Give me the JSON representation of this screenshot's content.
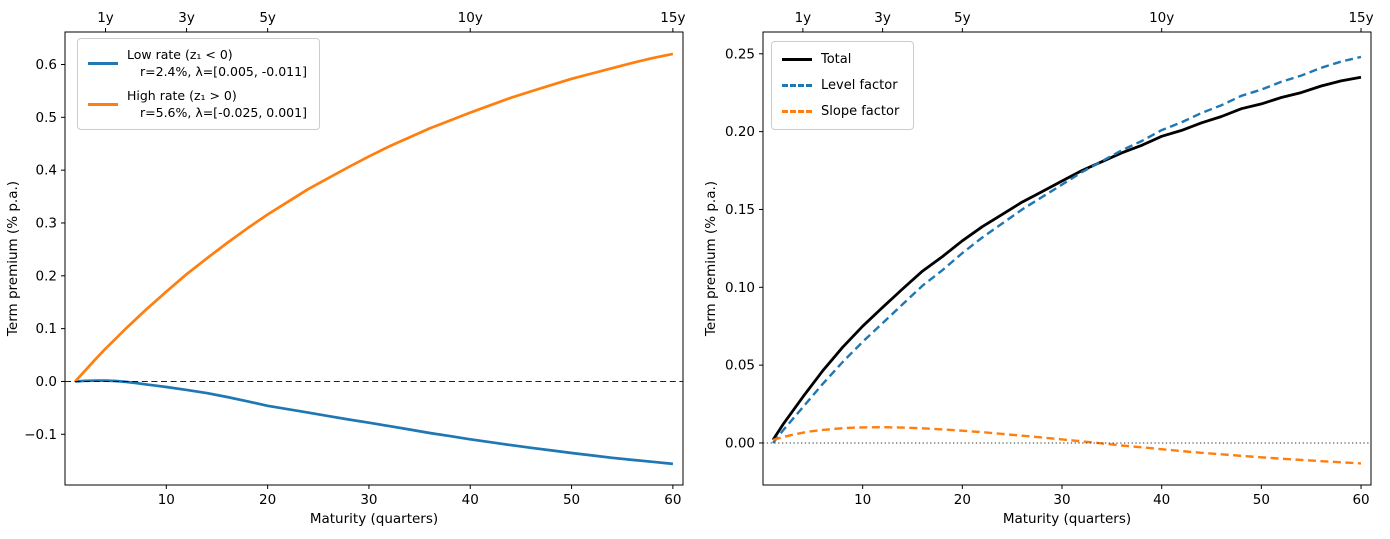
{
  "figure": {
    "background": "#ffffff"
  },
  "colors": {
    "blue": "#1f77b4",
    "orange": "#ff7f0e",
    "black": "#000000",
    "axis": "#000000",
    "legend_border": "#cccccc"
  },
  "chart_data": [
    {
      "type": "line",
      "title": "",
      "xlabel": "Maturity (quarters)",
      "ylabel": "Term premium (% p.a.)",
      "xlim": [
        0,
        61
      ],
      "ylim": [
        -0.196,
        0.6615
      ],
      "grid": false,
      "x_ticks": [
        {
          "v": 10,
          "label": "10"
        },
        {
          "v": 20,
          "label": "20"
        },
        {
          "v": 30,
          "label": "30"
        },
        {
          "v": 40,
          "label": "40"
        },
        {
          "v": 50,
          "label": "50"
        },
        {
          "v": 60,
          "label": "60"
        }
      ],
      "y_ticks": [
        {
          "v": -0.1,
          "label": "−0.1"
        },
        {
          "v": 0.0,
          "label": "0.0"
        },
        {
          "v": 0.1,
          "label": "0.1"
        },
        {
          "v": 0.2,
          "label": "0.2"
        },
        {
          "v": 0.3,
          "label": "0.3"
        },
        {
          "v": 0.4,
          "label": "0.4"
        },
        {
          "v": 0.5,
          "label": "0.5"
        },
        {
          "v": 0.6,
          "label": "0.6"
        }
      ],
      "top_ticks": [
        {
          "v": 4,
          "label": "1y"
        },
        {
          "v": 12,
          "label": "3y"
        },
        {
          "v": 20,
          "label": "5y"
        },
        {
          "v": 40,
          "label": "10y"
        },
        {
          "v": 60,
          "label": "15y"
        }
      ],
      "zero_line": {
        "value": 0.0,
        "dash": "dashed",
        "color": "#000000"
      },
      "legend": {
        "position": "upper left",
        "entries": [
          {
            "label": "Low rate (z₁ < 0)",
            "sublabel": "r=2.4%, λ=[0.005, -0.011]",
            "color": "#1f77b4",
            "dash": "solid"
          },
          {
            "label": "High rate (z₁ > 0)",
            "sublabel": "r=5.6%, λ=[-0.025, 0.001]",
            "color": "#ff7f0e",
            "dash": "solid"
          }
        ]
      },
      "series": [
        {
          "id": "low-rate",
          "name": "Low rate (z₁ < 0)",
          "color": "#1f77b4",
          "dash": "solid",
          "width": 2.7,
          "points": [
            [
              1,
              0
            ],
            [
              2,
              0.0012
            ],
            [
              3,
              0.0017
            ],
            [
              4,
              0.0016
            ],
            [
              5,
              0.0008
            ],
            [
              6,
              -0.0008
            ],
            [
              7,
              -0.003
            ],
            [
              8,
              -0.0055
            ],
            [
              9,
              -0.008
            ],
            [
              10,
              -0.0105
            ],
            [
              12,
              -0.016
            ],
            [
              14,
              -0.022
            ],
            [
              16,
              -0.0295
            ],
            [
              18,
              -0.0375
            ],
            [
              20,
              -0.046
            ],
            [
              22,
              -0.0525
            ],
            [
              24,
              -0.059
            ],
            [
              26,
              -0.0655
            ],
            [
              28,
              -0.072
            ],
            [
              30,
              -0.078
            ],
            [
              32,
              -0.0845
            ],
            [
              34,
              -0.091
            ],
            [
              36,
              -0.0975
            ],
            [
              38,
              -0.1035
            ],
            [
              40,
              -0.1095
            ],
            [
              42,
              -0.115
            ],
            [
              44,
              -0.1205
            ],
            [
              46,
              -0.1255
            ],
            [
              48,
              -0.1305
            ],
            [
              50,
              -0.1355
            ],
            [
              52,
              -0.14
            ],
            [
              54,
              -0.1445
            ],
            [
              56,
              -0.1485
            ],
            [
              58,
              -0.152
            ],
            [
              60,
              -0.156
            ]
          ]
        },
        {
          "id": "high-rate",
          "name": "High rate (z₁ > 0)",
          "color": "#ff7f0e",
          "dash": "solid",
          "width": 2.7,
          "points": [
            [
              1,
              0
            ],
            [
              2,
              0.021
            ],
            [
              3,
              0.042
            ],
            [
              4,
              0.062
            ],
            [
              5,
              0.081
            ],
            [
              6,
              0.1
            ],
            [
              7,
              0.118
            ],
            [
              8,
              0.136
            ],
            [
              9,
              0.153
            ],
            [
              10,
              0.17
            ],
            [
              12,
              0.203
            ],
            [
              14,
              0.233
            ],
            [
              16,
              0.262
            ],
            [
              18,
              0.29
            ],
            [
              20,
              0.316
            ],
            [
              22,
              0.34
            ],
            [
              24,
              0.364
            ],
            [
              26,
              0.385
            ],
            [
              28,
              0.406
            ],
            [
              30,
              0.426
            ],
            [
              32,
              0.445
            ],
            [
              34,
              0.462
            ],
            [
              36,
              0.479
            ],
            [
              38,
              0.494
            ],
            [
              40,
              0.509
            ],
            [
              42,
              0.523
            ],
            [
              44,
              0.537
            ],
            [
              46,
              0.549
            ],
            [
              48,
              0.561
            ],
            [
              50,
              0.573
            ],
            [
              52,
              0.583
            ],
            [
              54,
              0.593
            ],
            [
              56,
              0.603
            ],
            [
              58,
              0.612
            ],
            [
              60,
              0.62
            ]
          ]
        }
      ]
    },
    {
      "type": "line",
      "title": "",
      "xlabel": "Maturity (quarters)",
      "ylabel": "Term premium (% p.a.)",
      "xlim": [
        0,
        61
      ],
      "ylim": [
        -0.027,
        0.264
      ],
      "grid": false,
      "x_ticks": [
        {
          "v": 10,
          "label": "10"
        },
        {
          "v": 20,
          "label": "20"
        },
        {
          "v": 30,
          "label": "30"
        },
        {
          "v": 40,
          "label": "40"
        },
        {
          "v": 50,
          "label": "50"
        },
        {
          "v": 60,
          "label": "60"
        }
      ],
      "y_ticks": [
        {
          "v": 0.0,
          "label": "0.00"
        },
        {
          "v": 0.05,
          "label": "0.05"
        },
        {
          "v": 0.1,
          "label": "0.10"
        },
        {
          "v": 0.15,
          "label": "0.15"
        },
        {
          "v": 0.2,
          "label": "0.20"
        },
        {
          "v": 0.25,
          "label": "0.25"
        }
      ],
      "top_ticks": [
        {
          "v": 4,
          "label": "1y"
        },
        {
          "v": 12,
          "label": "3y"
        },
        {
          "v": 20,
          "label": "5y"
        },
        {
          "v": 40,
          "label": "10y"
        },
        {
          "v": 60,
          "label": "15y"
        }
      ],
      "zero_line": {
        "value": 0.0,
        "dash": "dotted",
        "color": "#333333"
      },
      "legend": {
        "position": "upper left",
        "entries": [
          {
            "label": "Total",
            "sublabel": "",
            "color": "#000000",
            "dash": "solid"
          },
          {
            "label": "Level factor",
            "sublabel": "",
            "color": "#1f77b4",
            "dash": "dashed"
          },
          {
            "label": "Slope factor",
            "sublabel": "",
            "color": "#ff7f0e",
            "dash": "dashed"
          }
        ]
      },
      "series": [
        {
          "id": "total",
          "name": "Total",
          "color": "#000000",
          "dash": "solid",
          "width": 2.8,
          "points": [
            [
              1,
              0.002
            ],
            [
              2,
              0.0118
            ],
            [
              4,
              0.0296
            ],
            [
              6,
              0.0464
            ],
            [
              8,
              0.0615
            ],
            [
              10,
              0.075
            ],
            [
              12,
              0.0871
            ],
            [
              14,
              0.0989
            ],
            [
              16,
              0.1104
            ],
            [
              18,
              0.1197
            ],
            [
              20,
              0.1299
            ],
            [
              22,
              0.1389
            ],
            [
              24,
              0.1468
            ],
            [
              26,
              0.1547
            ],
            [
              28,
              0.1615
            ],
            [
              30,
              0.1683
            ],
            [
              32,
              0.175
            ],
            [
              34,
              0.1807
            ],
            [
              36,
              0.1864
            ],
            [
              38,
              0.1912
            ],
            [
              40,
              0.197
            ],
            [
              42,
              0.2008
            ],
            [
              44,
              0.2057
            ],
            [
              46,
              0.2097
            ],
            [
              48,
              0.2147
            ],
            [
              50,
              0.2178
            ],
            [
              52,
              0.2219
            ],
            [
              54,
              0.2251
            ],
            [
              56,
              0.2293
            ],
            [
              58,
              0.2326
            ],
            [
              60,
              0.2349
            ]
          ]
        },
        {
          "id": "level-factor",
          "name": "Level factor",
          "color": "#1f77b4",
          "dash": "dashed",
          "width": 2.4,
          "points": [
            [
              1,
              0
            ],
            [
              2,
              0.008
            ],
            [
              4,
              0.023
            ],
            [
              6,
              0.038
            ],
            [
              8,
              0.052
            ],
            [
              10,
              0.065
            ],
            [
              12,
              0.077
            ],
            [
              14,
              0.089
            ],
            [
              16,
              0.101
            ],
            [
              18,
              0.111
            ],
            [
              20,
              0.122
            ],
            [
              22,
              0.132
            ],
            [
              24,
              0.141
            ],
            [
              26,
              0.15
            ],
            [
              28,
              0.158
            ],
            [
              30,
              0.166
            ],
            [
              32,
              0.174
            ],
            [
              34,
              0.181
            ],
            [
              36,
              0.188
            ],
            [
              38,
              0.194
            ],
            [
              40,
              0.201
            ],
            [
              42,
              0.206
            ],
            [
              44,
              0.212
            ],
            [
              46,
              0.217
            ],
            [
              48,
              0.223
            ],
            [
              50,
              0.227
            ],
            [
              52,
              0.232
            ],
            [
              54,
              0.236
            ],
            [
              56,
              0.241
            ],
            [
              58,
              0.245
            ],
            [
              60,
              0.248
            ]
          ]
        },
        {
          "id": "slope-factor",
          "name": "Slope factor",
          "color": "#ff7f0e",
          "dash": "dashed",
          "width": 2.4,
          "points": [
            [
              1,
              0.002
            ],
            [
              2,
              0.0038
            ],
            [
              3,
              0.0053
            ],
            [
              4,
              0.0066
            ],
            [
              5,
              0.0076
            ],
            [
              6,
              0.0084
            ],
            [
              7,
              0.009
            ],
            [
              8,
              0.0095
            ],
            [
              9,
              0.0098
            ],
            [
              10,
              0.01
            ],
            [
              12,
              0.0101
            ],
            [
              14,
              0.0099
            ],
            [
              16,
              0.0094
            ],
            [
              18,
              0.0087
            ],
            [
              20,
              0.0079
            ],
            [
              22,
              0.0069
            ],
            [
              24,
              0.0058
            ],
            [
              26,
              0.0047
            ],
            [
              28,
              0.0035
            ],
            [
              30,
              0.0023
            ],
            [
              32,
              0.001
            ],
            [
              34,
              -0.0003
            ],
            [
              36,
              -0.0016
            ],
            [
              38,
              -0.0028
            ],
            [
              40,
              -0.004
            ],
            [
              42,
              -0.0052
            ],
            [
              44,
              -0.0063
            ],
            [
              46,
              -0.0073
            ],
            [
              48,
              -0.0083
            ],
            [
              50,
              -0.0092
            ],
            [
              52,
              -0.0101
            ],
            [
              54,
              -0.0109
            ],
            [
              56,
              -0.0117
            ],
            [
              58,
              -0.0124
            ],
            [
              60,
              -0.0131
            ]
          ]
        }
      ]
    }
  ]
}
